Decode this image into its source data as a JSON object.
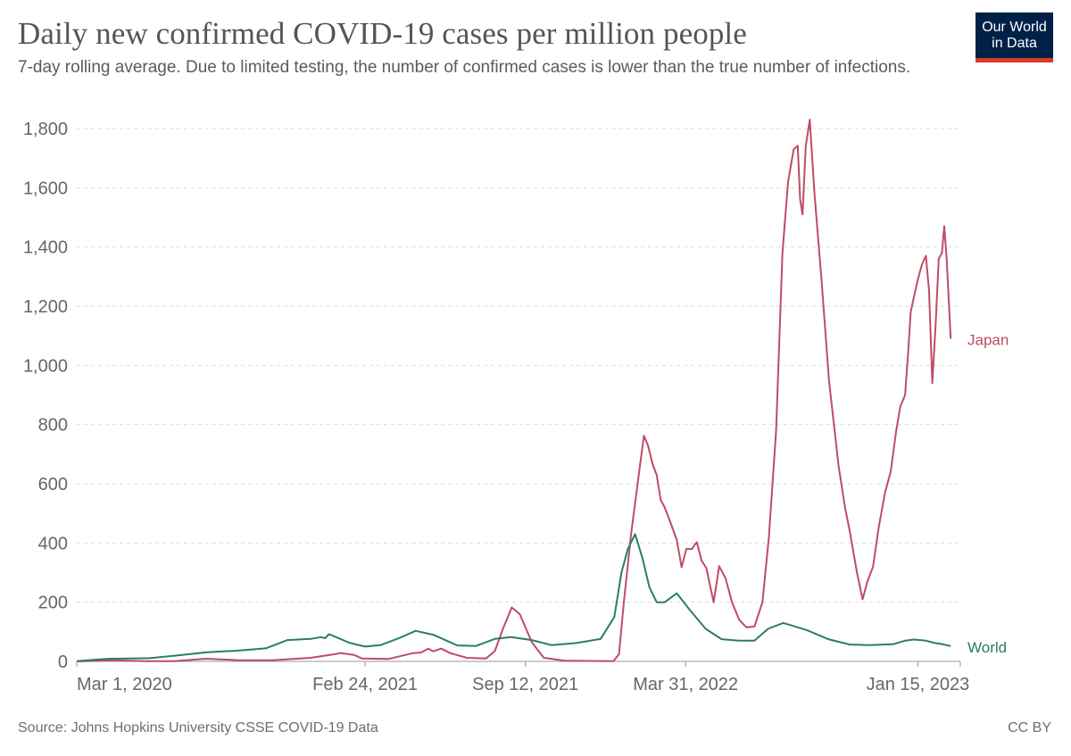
{
  "header": {
    "title": "Daily new confirmed COVID-19 cases per million people",
    "subtitle": "7-day rolling average. Due to limited testing, the number of confirmed cases is lower than the true number of infections.",
    "logo_line1": "Our World",
    "logo_line2": "in Data"
  },
  "footer": {
    "source": "Source: Johns Hopkins University CSSE COVID-19 Data",
    "license": "CC BY"
  },
  "colors": {
    "japan": "#be4c65",
    "world": "#2b7e62",
    "grid": "#dddddd",
    "axis_text": "#666666"
  },
  "chart_data": {
    "type": "line",
    "title": "Daily new confirmed COVID-19 cases per million people",
    "subtitle": "7-day rolling average. Due to limited testing, the number of confirmed cases is lower than the true number of infections.",
    "xlabel": "",
    "ylabel": "",
    "ylim": [
      0,
      1800
    ],
    "xlim": [
      "2020-03-01",
      "2023-03-09"
    ],
    "y_ticks": [
      0,
      200,
      400,
      600,
      800,
      1000,
      1200,
      1400,
      1600,
      1800
    ],
    "y_tick_labels": [
      "0",
      "200",
      "400",
      "600",
      "800",
      "1,000",
      "1,200",
      "1,400",
      "1,600",
      "1,800"
    ],
    "x_ticks": [
      "2020-03-01",
      "2021-02-24",
      "2021-09-12",
      "2022-03-31",
      "2023-01-15"
    ],
    "x_tick_labels": [
      "Mar 1, 2020",
      "Feb 24, 2021",
      "Sep 12, 2021",
      "Mar 31, 2022",
      "Jan 15, 2023"
    ],
    "grid": true,
    "legend": "inline-right",
    "series": [
      {
        "name": "Japan",
        "color": "#be4c65",
        "points": [
          [
            "2020-03-01",
            0
          ],
          [
            "2020-04-14",
            4
          ],
          [
            "2020-05-25",
            1
          ],
          [
            "2020-07-01",
            1
          ],
          [
            "2020-08-09",
            9
          ],
          [
            "2020-09-20",
            4
          ],
          [
            "2020-10-31",
            4
          ],
          [
            "2020-12-18",
            12
          ],
          [
            "2021-01-09",
            21
          ],
          [
            "2021-01-25",
            28
          ],
          [
            "2021-02-10",
            22
          ],
          [
            "2021-02-20",
            10
          ],
          [
            "2021-03-25",
            8
          ],
          [
            "2021-04-25",
            28
          ],
          [
            "2021-05-05",
            30
          ],
          [
            "2021-05-14",
            43
          ],
          [
            "2021-05-20",
            34
          ],
          [
            "2021-05-30",
            43
          ],
          [
            "2021-06-10",
            28
          ],
          [
            "2021-07-01",
            12
          ],
          [
            "2021-07-25",
            10
          ],
          [
            "2021-08-05",
            35
          ],
          [
            "2021-08-15",
            110
          ],
          [
            "2021-08-26",
            182
          ],
          [
            "2021-09-05",
            160
          ],
          [
            "2021-09-20",
            65
          ],
          [
            "2021-10-05",
            12
          ],
          [
            "2021-11-01",
            2
          ],
          [
            "2021-12-31",
            1
          ],
          [
            "2022-01-07",
            25
          ],
          [
            "2022-01-13",
            200
          ],
          [
            "2022-01-22",
            430
          ],
          [
            "2022-02-01",
            640
          ],
          [
            "2022-02-07",
            762
          ],
          [
            "2022-02-12",
            730
          ],
          [
            "2022-02-18",
            665
          ],
          [
            "2022-02-23",
            630
          ],
          [
            "2022-02-28",
            545
          ],
          [
            "2022-03-05",
            520
          ],
          [
            "2022-03-12",
            470
          ],
          [
            "2022-03-20",
            410
          ],
          [
            "2022-03-26",
            318
          ],
          [
            "2022-04-01",
            380
          ],
          [
            "2022-04-08",
            380
          ],
          [
            "2022-04-14",
            403
          ],
          [
            "2022-04-20",
            340
          ],
          [
            "2022-04-26",
            315
          ],
          [
            "2022-05-01",
            250
          ],
          [
            "2022-05-05",
            200
          ],
          [
            "2022-05-12",
            322
          ],
          [
            "2022-05-20",
            280
          ],
          [
            "2022-05-28",
            200
          ],
          [
            "2022-06-06",
            140
          ],
          [
            "2022-06-15",
            115
          ],
          [
            "2022-06-25",
            118
          ],
          [
            "2022-07-05",
            200
          ],
          [
            "2022-07-13",
            420
          ],
          [
            "2022-07-22",
            780
          ],
          [
            "2022-07-30",
            1380
          ],
          [
            "2022-08-06",
            1620
          ],
          [
            "2022-08-13",
            1730
          ],
          [
            "2022-08-18",
            1742
          ],
          [
            "2022-08-21",
            1560
          ],
          [
            "2022-08-24",
            1510
          ],
          [
            "2022-08-28",
            1740
          ],
          [
            "2022-09-02",
            1830
          ],
          [
            "2022-09-08",
            1580
          ],
          [
            "2022-09-17",
            1280
          ],
          [
            "2022-09-26",
            950
          ],
          [
            "2022-10-08",
            660
          ],
          [
            "2022-10-16",
            520
          ],
          [
            "2022-10-22",
            440
          ],
          [
            "2022-10-31",
            300
          ],
          [
            "2022-11-07",
            210
          ],
          [
            "2022-11-13",
            270
          ],
          [
            "2022-11-20",
            320
          ],
          [
            "2022-11-27",
            450
          ],
          [
            "2022-12-05",
            570
          ],
          [
            "2022-12-12",
            640
          ],
          [
            "2022-12-19",
            780
          ],
          [
            "2022-12-24",
            860
          ],
          [
            "2022-12-30",
            900
          ],
          [
            "2023-01-03",
            1050
          ],
          [
            "2023-01-06",
            1180
          ],
          [
            "2023-01-10",
            1230
          ],
          [
            "2023-01-15",
            1290
          ],
          [
            "2023-01-20",
            1340
          ],
          [
            "2023-01-25",
            1370
          ],
          [
            "2023-01-29",
            1250
          ],
          [
            "2023-02-02",
            940
          ],
          [
            "2023-02-06",
            1130
          ],
          [
            "2023-02-10",
            1360
          ],
          [
            "2023-02-14",
            1380
          ],
          [
            "2023-02-17",
            1470
          ],
          [
            "2023-02-20",
            1360
          ],
          [
            "2023-02-25",
            1090
          ]
        ]
      },
      {
        "name": "World",
        "color": "#2b7e62",
        "points": [
          [
            "2020-03-01",
            1
          ],
          [
            "2020-03-22",
            5
          ],
          [
            "2020-04-12",
            9
          ],
          [
            "2020-05-31",
            11
          ],
          [
            "2020-07-04",
            20
          ],
          [
            "2020-08-11",
            31
          ],
          [
            "2020-09-15",
            36
          ],
          [
            "2020-10-23",
            44
          ],
          [
            "2020-11-19",
            72
          ],
          [
            "2020-12-18",
            76
          ],
          [
            "2020-12-31",
            82
          ],
          [
            "2021-01-05",
            78
          ],
          [
            "2021-01-10",
            92
          ],
          [
            "2021-02-05",
            62
          ],
          [
            "2021-02-24",
            50
          ],
          [
            "2021-03-15",
            55
          ],
          [
            "2021-04-07",
            78
          ],
          [
            "2021-04-28",
            103
          ],
          [
            "2021-05-20",
            90
          ],
          [
            "2021-06-19",
            54
          ],
          [
            "2021-07-12",
            52
          ],
          [
            "2021-08-05",
            76
          ],
          [
            "2021-08-25",
            82
          ],
          [
            "2021-09-20",
            72
          ],
          [
            "2021-10-15",
            55
          ],
          [
            "2021-11-15",
            62
          ],
          [
            "2021-12-15",
            76
          ],
          [
            "2022-01-01",
            150
          ],
          [
            "2022-01-10",
            300
          ],
          [
            "2022-01-18",
            380
          ],
          [
            "2022-01-27",
            430
          ],
          [
            "2022-02-05",
            350
          ],
          [
            "2022-02-14",
            250
          ],
          [
            "2022-02-23",
            200
          ],
          [
            "2022-03-05",
            200
          ],
          [
            "2022-03-20",
            230
          ],
          [
            "2022-04-05",
            175
          ],
          [
            "2022-04-25",
            110
          ],
          [
            "2022-05-15",
            75
          ],
          [
            "2022-06-05",
            70
          ],
          [
            "2022-06-25",
            70
          ],
          [
            "2022-07-12",
            110
          ],
          [
            "2022-07-31",
            130
          ],
          [
            "2022-08-12",
            120
          ],
          [
            "2022-08-30",
            105
          ],
          [
            "2022-09-25",
            75
          ],
          [
            "2022-10-22",
            57
          ],
          [
            "2022-11-15",
            55
          ],
          [
            "2022-12-15",
            58
          ],
          [
            "2022-12-30",
            70
          ],
          [
            "2023-01-10",
            74
          ],
          [
            "2023-01-25",
            70
          ],
          [
            "2023-02-05",
            62
          ],
          [
            "2023-02-15",
            58
          ],
          [
            "2023-02-25",
            52
          ]
        ]
      }
    ]
  }
}
